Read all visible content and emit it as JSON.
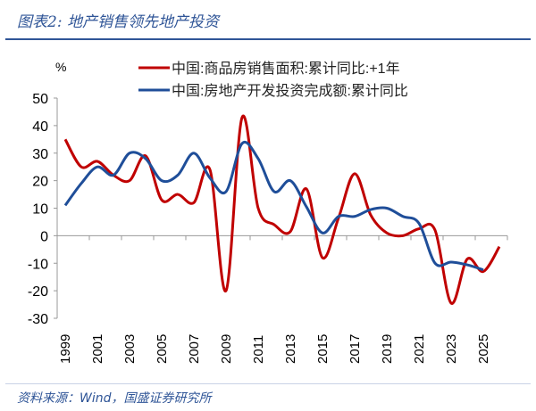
{
  "header": {
    "title": "图表2: 地产销售领先地产投资"
  },
  "footer": {
    "source": "资料来源：Wind，国盛证券研究所"
  },
  "chart_data": {
    "type": "line",
    "ylabel": "%",
    "ylim": [
      -30,
      50
    ],
    "yticks": [
      50,
      40,
      30,
      20,
      10,
      0,
      -10,
      -20,
      -30
    ],
    "x": [
      1999,
      2000,
      2001,
      2002,
      2003,
      2004,
      2005,
      2006,
      2007,
      2008,
      2009,
      2010,
      2011,
      2012,
      2013,
      2014,
      2015,
      2016,
      2017,
      2018,
      2019,
      2020,
      2021,
      2022,
      2023,
      2024,
      2025,
      2026
    ],
    "xtick_labels": [
      "1999",
      "2001",
      "2003",
      "2005",
      "2007",
      "2009",
      "2011",
      "2013",
      "2015",
      "2017",
      "2019",
      "2021",
      "2023",
      "2025"
    ],
    "grid": false,
    "legend": "top",
    "series": [
      {
        "name": "中国:商品房销售面积:累计同比:+1年",
        "color": "#c00000",
        "values": [
          35,
          25,
          27,
          22,
          20,
          29,
          13,
          15,
          12,
          24,
          -20,
          43,
          10,
          4,
          1.5,
          17,
          -8,
          6.5,
          22.5,
          7.5,
          1,
          0,
          2.5,
          2,
          -24.5,
          -8.5,
          -13,
          -4
        ]
      },
      {
        "name": "中国:房地产开发投资完成额:累计同比",
        "color": "#1f4e99",
        "values": [
          11,
          19,
          25,
          22,
          30,
          28,
          20,
          22,
          30,
          21,
          16,
          33.5,
          28,
          16,
          20,
          10.5,
          1,
          7,
          7,
          9.5,
          10,
          7,
          4.5,
          -10,
          -9.6,
          -10.6,
          -12.4,
          null
        ]
      }
    ]
  }
}
